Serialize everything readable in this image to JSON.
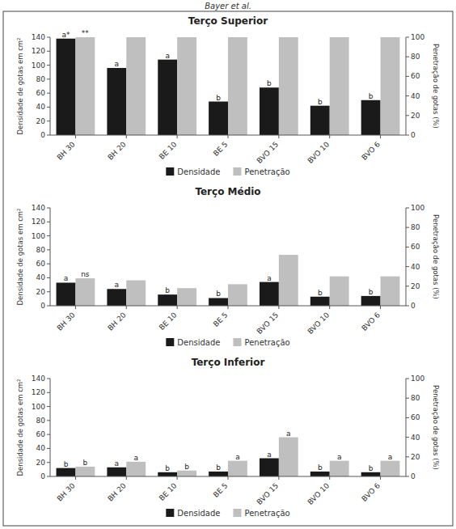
{
  "chart_data": [
    {
      "type": "bar",
      "title": "Terço Superior",
      "annotations": [
        "Bayer et al."
      ],
      "categories": [
        "BH 30",
        "BH 20",
        "BE 10",
        "BE 5",
        "BVO 15",
        "BVO 10",
        "BVO 6"
      ],
      "series": [
        {
          "name": "Densidade",
          "color": "#1a1a1a",
          "values": [
            138,
            96,
            108,
            48,
            68,
            42,
            50
          ],
          "value_labels": [
            "a*",
            "a",
            "a",
            "b",
            "b",
            "b",
            "b"
          ]
        },
        {
          "name": "Penetração",
          "color": "#bfbfbf",
          "axis": "y2",
          "values": [
            100,
            100,
            100,
            100,
            100,
            100,
            100
          ],
          "value_labels": [
            "**",
            null,
            null,
            null,
            null,
            null,
            null
          ]
        }
      ],
      "ylabel": "Densidade de gotas em cm²",
      "y2label": "Penetração de gotas (%)",
      "ylim": [
        0,
        140
      ],
      "yticks": [
        0,
        20,
        40,
        60,
        80,
        100,
        120,
        140
      ],
      "y2lim": [
        0,
        100
      ],
      "y2ticks": [
        0,
        20,
        40,
        60,
        80,
        100
      ],
      "grid": false,
      "legend": "bottom"
    },
    {
      "type": "bar",
      "title": "Terço Médio",
      "categories": [
        "BH 30",
        "BH 20",
        "BE 10",
        "BE 5",
        "BVO 15",
        "BVO 10",
        "BVO 6"
      ],
      "series": [
        {
          "name": "Densidade",
          "color": "#1a1a1a",
          "values": [
            33,
            24,
            16,
            11,
            34,
            13,
            14
          ],
          "value_labels": [
            "a",
            "a",
            "b",
            "b",
            "a",
            "b",
            "b"
          ]
        },
        {
          "name": "Penetração",
          "color": "#bfbfbf",
          "axis": "y2",
          "values": [
            28,
            26,
            18,
            22,
            52,
            30,
            30
          ],
          "value_labels": [
            "ns",
            null,
            null,
            null,
            null,
            null,
            null
          ]
        }
      ],
      "ylabel": "Densidade de gotas em cm²",
      "y2label": "Penetração de gotas (%)",
      "ylim": [
        0,
        140
      ],
      "yticks": [
        0,
        20,
        40,
        60,
        80,
        100,
        120,
        140
      ],
      "y2lim": [
        0,
        100
      ],
      "y2ticks": [
        0,
        20,
        40,
        60,
        80,
        100
      ],
      "grid": false,
      "legend": "bottom"
    },
    {
      "type": "bar",
      "title": "Terço Inferior",
      "categories": [
        "BH 30",
        "BH 20",
        "BE 10",
        "BE 5",
        "BVO 15",
        "BVO 10",
        "BVO 6"
      ],
      "series": [
        {
          "name": "Densidade",
          "color": "#1a1a1a",
          "values": [
            12,
            13,
            6,
            7,
            26,
            7,
            6
          ],
          "value_labels": [
            "b",
            "a",
            "b",
            "b",
            "a",
            "b",
            "b"
          ]
        },
        {
          "name": "Penetração",
          "color": "#bfbfbf",
          "axis": "y2",
          "values": [
            10,
            15,
            6,
            16,
            40,
            16,
            16
          ],
          "value_labels": [
            "b",
            "a",
            "b",
            "a",
            "a",
            "a",
            "a"
          ]
        }
      ],
      "ylabel": "Densidade de gotas em cm²",
      "y2label": "Penetração de gotas (%)",
      "ylim": [
        0,
        140
      ],
      "yticks": [
        0,
        20,
        40,
        60,
        80,
        100,
        120,
        140
      ],
      "y2lim": [
        0,
        100
      ],
      "y2ticks": [
        0,
        20,
        40,
        60,
        80,
        100
      ],
      "grid": false,
      "legend": "bottom"
    }
  ]
}
